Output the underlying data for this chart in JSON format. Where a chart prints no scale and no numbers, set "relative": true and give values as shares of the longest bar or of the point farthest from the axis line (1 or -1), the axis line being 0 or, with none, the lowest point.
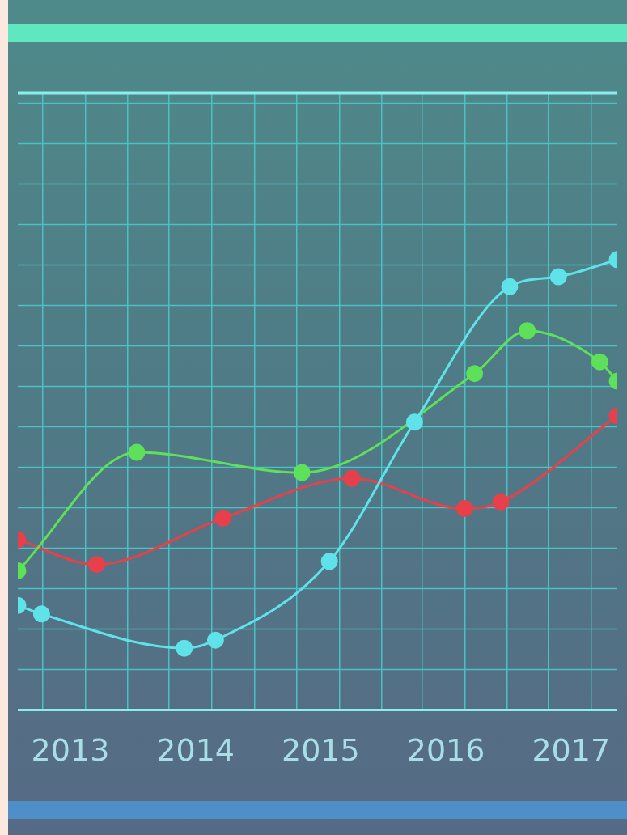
{
  "chart_data": {
    "type": "line",
    "relative": true,
    "x": [
      2012.58,
      2012.77,
      2013.91,
      2014.16,
      2015.07,
      2015.75,
      2016.51,
      2016.9,
      2017.37
    ],
    "xlim": [
      2012.58,
      2017.37
    ],
    "xticks": [
      {
        "value": 2012.78,
        "label": null
      },
      2013,
      {
        "value": 2013.12,
        "label": null
      },
      {
        "value": 2013.46,
        "label": null
      },
      {
        "value": 2013.79,
        "label": null
      },
      2014,
      {
        "value": 2014.13,
        "label": null
      },
      {
        "value": 2014.47,
        "label": null
      },
      {
        "value": 2014.81,
        "label": null
      },
      2015,
      {
        "value": 2015.15,
        "label": null
      },
      {
        "value": 2015.49,
        "label": null
      },
      {
        "value": 2015.81,
        "label": null
      },
      2016,
      {
        "value": 2016.15,
        "label": null
      },
      {
        "value": 2016.49,
        "label": null
      },
      {
        "value": 2016.82,
        "label": null
      },
      2017,
      {
        "value": 2017.16,
        "label": null
      }
    ],
    "grid": true,
    "marker": "circle",
    "line_style": "solid",
    "legend": false,
    "series": [
      {
        "color": "#5fe3e8",
        "values": [
          0.232,
          0.213,
          0.137,
          0.155,
          0.33,
          0.639,
          0.94,
          0.962,
          1
        ]
      },
      {
        "color": "#5ee05a",
        "x": [
          2012.58,
          2013.53,
          2014.85,
          2016.23,
          2016.65,
          2017.23,
          2017.37
        ],
        "values": [
          0.309,
          0.572,
          0.527,
          0.747,
          0.842,
          0.773,
          0.73
        ]
      },
      {
        "color": "#e8404a",
        "x": [
          2012.58,
          2013.21,
          2014.22,
          2015.25,
          2016.15,
          2016.44,
          2017.37
        ],
        "values": [
          0.378,
          0.323,
          0.426,
          0.514,
          0.447,
          0.462,
          0.653
        ]
      }
    ]
  }
}
